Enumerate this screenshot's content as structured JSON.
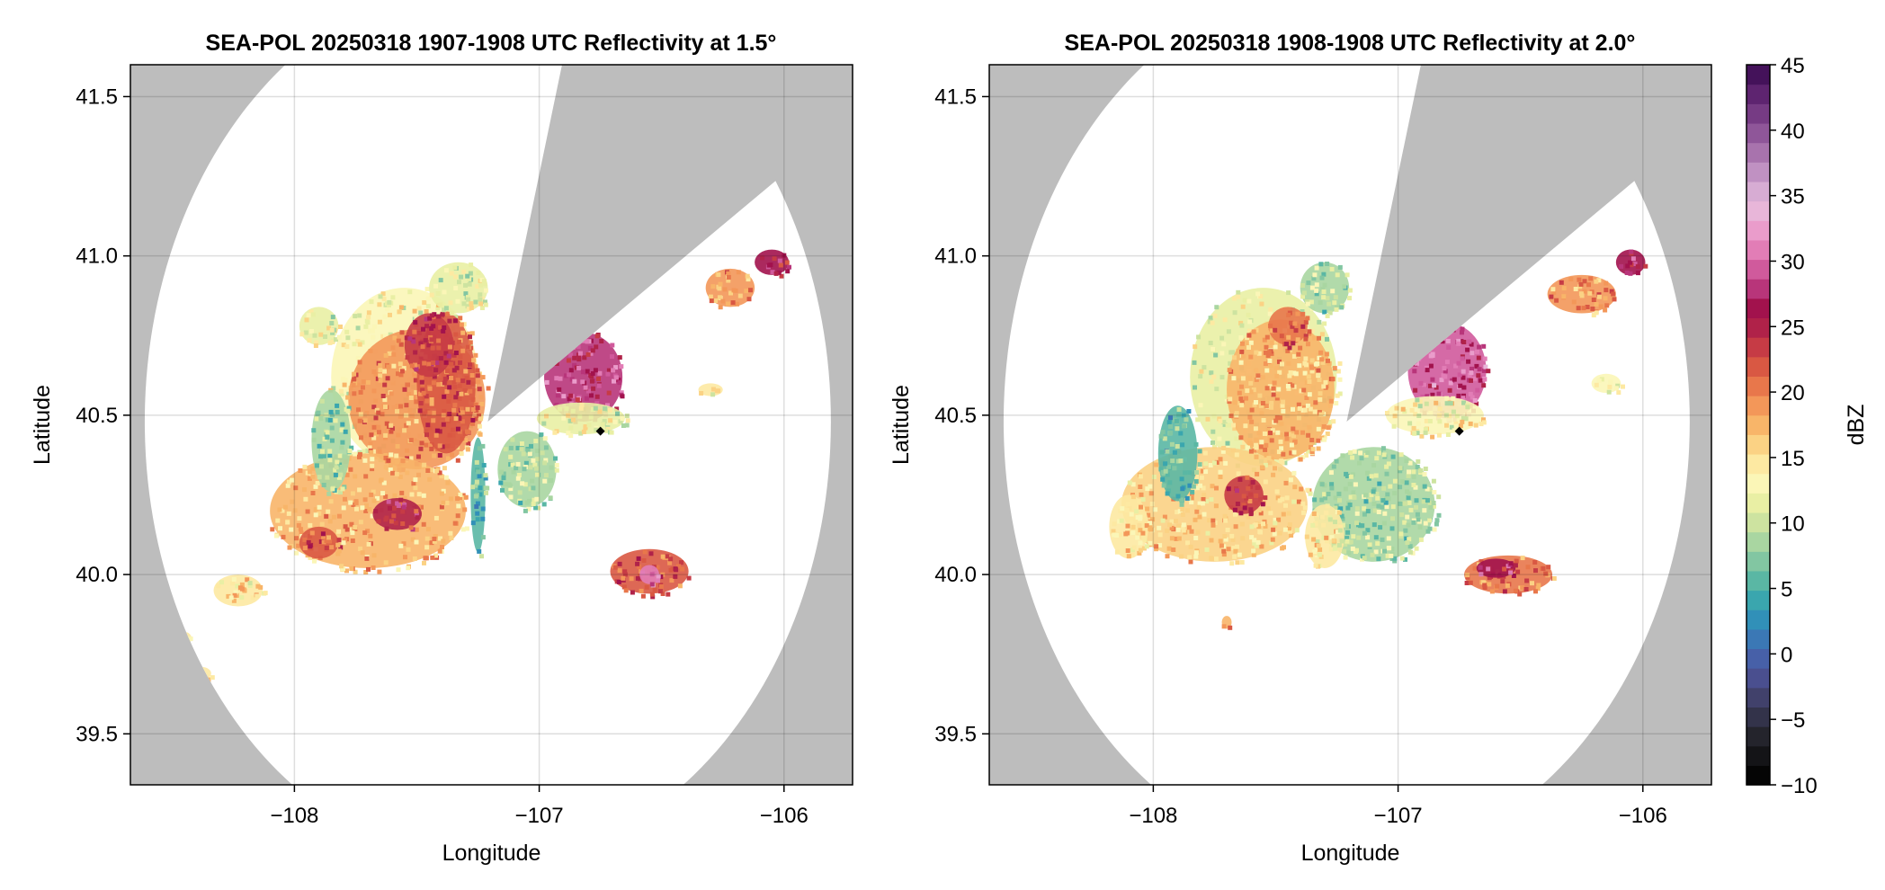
{
  "figure": {
    "background_outside_range": "#bdbdbd",
    "in_range_no_echo": "#ffffff",
    "radar_marker": "#000000"
  },
  "chart_data": [
    {
      "type": "heatmap",
      "title": "SEA-POL 20250318 1907-1908 UTC Reflectivity at 1.5°",
      "xlabel": "Longitude",
      "ylabel": "Latitude",
      "xlim": [
        -108.67,
        -105.72
      ],
      "ylim": [
        39.34,
        41.6
      ],
      "xticks": [
        -108,
        -107,
        -106
      ],
      "xtick_labels": [
        "−108",
        "−107",
        "−106"
      ],
      "yticks": [
        39.5,
        40.0,
        40.5,
        41.0,
        41.5
      ],
      "ytick_labels": [
        "39.5",
        "40.0",
        "40.5",
        "41.0",
        "41.5"
      ],
      "grid": true,
      "radar_site": {
        "lon": -107.21,
        "lat": 40.48
      },
      "max_range_deg": 1.43,
      "blocked_sector_deg": [
        15,
        57
      ],
      "station_marker": {
        "lon": -106.75,
        "lat": 40.45
      },
      "echo_cells": [
        {
          "lon": -107.55,
          "lat": 40.62,
          "dbz": 13,
          "rx": 0.3,
          "ry": 0.28
        },
        {
          "lon": -107.5,
          "lat": 40.55,
          "dbz": 19,
          "rx": 0.28,
          "ry": 0.22
        },
        {
          "lon": -107.38,
          "lat": 40.6,
          "dbz": 22,
          "rx": 0.12,
          "ry": 0.22
        },
        {
          "lon": -107.45,
          "lat": 40.72,
          "dbz": 24,
          "rx": 0.1,
          "ry": 0.1
        },
        {
          "lon": -107.7,
          "lat": 40.2,
          "dbz": 17,
          "rx": 0.4,
          "ry": 0.18
        },
        {
          "lon": -107.58,
          "lat": 40.19,
          "dbz": 25,
          "rx": 0.1,
          "ry": 0.05
        },
        {
          "lon": -107.9,
          "lat": 40.1,
          "dbz": 22,
          "rx": 0.08,
          "ry": 0.05
        },
        {
          "lon": -107.85,
          "lat": 40.42,
          "dbz": 8,
          "rx": 0.08,
          "ry": 0.16
        },
        {
          "lon": -107.33,
          "lat": 40.9,
          "dbz": 11,
          "rx": 0.12,
          "ry": 0.08
        },
        {
          "lon": -107.25,
          "lat": 40.25,
          "dbz": 6,
          "rx": 0.03,
          "ry": 0.18
        },
        {
          "lon": -107.05,
          "lat": 40.33,
          "dbz": 9,
          "rx": 0.12,
          "ry": 0.12
        },
        {
          "lon": -106.82,
          "lat": 40.62,
          "dbz": 28,
          "rx": 0.16,
          "ry": 0.14
        },
        {
          "lon": -106.83,
          "lat": 40.49,
          "dbz": 12,
          "rx": 0.18,
          "ry": 0.05
        },
        {
          "lon": -106.22,
          "lat": 40.9,
          "dbz": 19,
          "rx": 0.1,
          "ry": 0.06
        },
        {
          "lon": -106.05,
          "lat": 40.98,
          "dbz": 26,
          "rx": 0.07,
          "ry": 0.04
        },
        {
          "lon": -106.55,
          "lat": 40.01,
          "dbz": 22,
          "rx": 0.16,
          "ry": 0.07
        },
        {
          "lon": -106.55,
          "lat": 40.0,
          "dbz": 31,
          "rx": 0.04,
          "ry": 0.03
        },
        {
          "lon": -106.3,
          "lat": 40.58,
          "dbz": 14,
          "rx": 0.05,
          "ry": 0.02
        },
        {
          "lon": -108.23,
          "lat": 39.95,
          "dbz": 15,
          "rx": 0.1,
          "ry": 0.05
        },
        {
          "lon": -108.45,
          "lat": 39.8,
          "dbz": 15,
          "rx": 0.03,
          "ry": 0.02
        },
        {
          "lon": -108.38,
          "lat": 39.69,
          "dbz": 15,
          "rx": 0.04,
          "ry": 0.02
        },
        {
          "lon": -107.9,
          "lat": 40.78,
          "dbz": 12,
          "rx": 0.08,
          "ry": 0.06
        }
      ]
    },
    {
      "type": "heatmap",
      "title": "SEA-POL 20250318 1908-1908 UTC Reflectivity at 2.0°",
      "xlabel": "Longitude",
      "ylabel": "Latitude",
      "xlim": [
        -108.67,
        -105.72
      ],
      "ylim": [
        39.34,
        41.6
      ],
      "xticks": [
        -108,
        -107,
        -106
      ],
      "xtick_labels": [
        "−108",
        "−107",
        "−106"
      ],
      "yticks": [
        39.5,
        40.0,
        40.5,
        41.0,
        41.5
      ],
      "ytick_labels": [
        "39.5",
        "40.0",
        "40.5",
        "41.0",
        "41.5"
      ],
      "grid": true,
      "radar_site": {
        "lon": -107.21,
        "lat": 40.48
      },
      "max_range_deg": 1.43,
      "blocked_sector_deg": [
        15,
        57
      ],
      "station_marker": {
        "lon": -106.75,
        "lat": 40.45
      },
      "echo_cells": [
        {
          "lon": -107.55,
          "lat": 40.62,
          "dbz": 12,
          "rx": 0.3,
          "ry": 0.28
        },
        {
          "lon": -107.48,
          "lat": 40.58,
          "dbz": 17,
          "rx": 0.22,
          "ry": 0.22
        },
        {
          "lon": -107.45,
          "lat": 40.78,
          "dbz": 21,
          "rx": 0.08,
          "ry": 0.06
        },
        {
          "lon": -107.75,
          "lat": 40.22,
          "dbz": 16,
          "rx": 0.38,
          "ry": 0.18
        },
        {
          "lon": -107.63,
          "lat": 40.25,
          "dbz": 23,
          "rx": 0.08,
          "ry": 0.06
        },
        {
          "lon": -107.9,
          "lat": 40.38,
          "dbz": 6,
          "rx": 0.08,
          "ry": 0.15
        },
        {
          "lon": -107.3,
          "lat": 40.9,
          "dbz": 9,
          "rx": 0.1,
          "ry": 0.08
        },
        {
          "lon": -107.1,
          "lat": 40.22,
          "dbz": 9,
          "rx": 0.25,
          "ry": 0.18
        },
        {
          "lon": -107.3,
          "lat": 40.12,
          "dbz": 14,
          "rx": 0.08,
          "ry": 0.1
        },
        {
          "lon": -106.8,
          "lat": 40.64,
          "dbz": 29,
          "rx": 0.16,
          "ry": 0.15
        },
        {
          "lon": -106.85,
          "lat": 40.5,
          "dbz": 13,
          "rx": 0.2,
          "ry": 0.06
        },
        {
          "lon": -106.25,
          "lat": 40.88,
          "dbz": 19,
          "rx": 0.14,
          "ry": 0.06
        },
        {
          "lon": -106.05,
          "lat": 40.98,
          "dbz": 27,
          "rx": 0.06,
          "ry": 0.04
        },
        {
          "lon": -106.55,
          "lat": 40.0,
          "dbz": 20,
          "rx": 0.18,
          "ry": 0.06
        },
        {
          "lon": -106.6,
          "lat": 40.02,
          "dbz": 27,
          "rx": 0.08,
          "ry": 0.03
        },
        {
          "lon": -106.15,
          "lat": 40.6,
          "dbz": 13,
          "rx": 0.06,
          "ry": 0.03
        },
        {
          "lon": -108.1,
          "lat": 40.15,
          "dbz": 15,
          "rx": 0.08,
          "ry": 0.1
        },
        {
          "lon": -107.7,
          "lat": 39.85,
          "dbz": 18,
          "rx": 0.02,
          "ry": 0.02
        }
      ]
    }
  ],
  "colorbar": {
    "label": "dBZ",
    "ticks": [
      -10,
      -5,
      0,
      5,
      10,
      15,
      20,
      25,
      30,
      35,
      40,
      45
    ],
    "tick_labels": [
      "−10",
      "−5",
      "0",
      "5",
      "10",
      "15",
      "20",
      "25",
      "30",
      "35",
      "40",
      "45"
    ],
    "range": [
      -10,
      45
    ],
    "colors": [
      "#050505",
      "#141417",
      "#24242c",
      "#33334a",
      "#41416b",
      "#4a4f8f",
      "#4760a8",
      "#3b78b5",
      "#3190b8",
      "#3aa6ae",
      "#5ab7a4",
      "#82c6a2",
      "#a9d6a1",
      "#cde3a0",
      "#e9efa4",
      "#fbf6b7",
      "#fde9a2",
      "#fbd284",
      "#f8b569",
      "#f39759",
      "#e8774b",
      "#d95843",
      "#c63b45",
      "#b02249",
      "#a2124d",
      "#b8357a",
      "#d05a9c",
      "#e27db6",
      "#ea9ccb",
      "#e8b6d9",
      "#d7acd3",
      "#c091c2",
      "#a873ad",
      "#8f5699",
      "#763b84",
      "#5e2470",
      "#44125a"
    ]
  }
}
